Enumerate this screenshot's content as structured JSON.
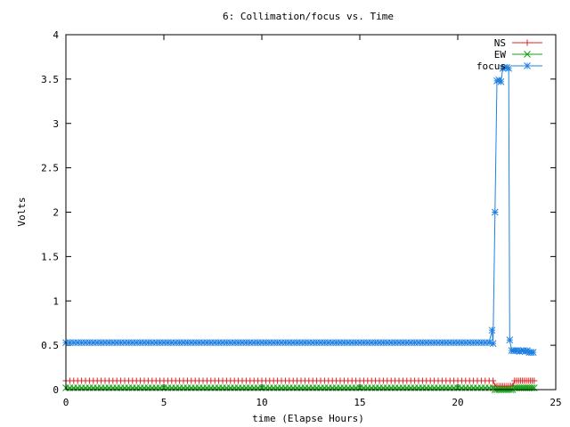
{
  "chart_data": {
    "type": "line",
    "title": "6: Collimation/focus vs. Time",
    "xlabel": "time (Elapse Hours)",
    "ylabel": "Volts",
    "xlim": [
      0,
      25
    ],
    "ylim": [
      0,
      4
    ],
    "xticks": [
      0,
      5,
      10,
      15,
      20,
      25
    ],
    "yticks": [
      0,
      0.5,
      1,
      1.5,
      2,
      2.5,
      3,
      3.5,
      4
    ],
    "xtick_labels": [
      "0",
      "5",
      "10",
      "15",
      "20",
      "25"
    ],
    "ytick_labels": [
      "0",
      "0.5",
      "1",
      "1.5",
      "2",
      "2.5",
      "3",
      "3.5",
      "4"
    ],
    "grid": false,
    "legend_position": "top-right",
    "series": [
      {
        "name": "NS",
        "color": "#e02020",
        "marker": "plus",
        "segments": [
          {
            "x_start": 0,
            "x_end": 21.8,
            "step": 0.2,
            "y": 0.1
          },
          {
            "x_start": 21.9,
            "x_end": 22.8,
            "step": 0.1,
            "y": 0.04
          },
          {
            "x_start": 22.9,
            "x_end": 23.9,
            "step": 0.1,
            "y": 0.1
          }
        ]
      },
      {
        "name": "EW",
        "color": "#10a010",
        "marker": "x",
        "segments": [
          {
            "x_start": 0,
            "x_end": 21.8,
            "step": 0.2,
            "y": 0.02
          },
          {
            "x_start": 21.9,
            "x_end": 22.8,
            "step": 0.1,
            "y": 0.0
          },
          {
            "x_start": 22.9,
            "x_end": 23.9,
            "step": 0.1,
            "y": 0.02
          }
        ]
      },
      {
        "name": "focus",
        "color": "#2080e0",
        "marker": "star",
        "segments": [
          {
            "x_start": 0,
            "x_end": 21.7,
            "step": 0.2,
            "y": 0.53
          }
        ],
        "points": [
          [
            21.75,
            0.67
          ],
          [
            21.8,
            0.52
          ],
          [
            21.9,
            2.0
          ],
          [
            22.0,
            3.48
          ],
          [
            22.1,
            3.49
          ],
          [
            22.2,
            3.47
          ],
          [
            22.3,
            3.62
          ],
          [
            22.4,
            3.63
          ],
          [
            22.5,
            3.63
          ],
          [
            22.6,
            3.62
          ],
          [
            22.65,
            0.56
          ],
          [
            22.75,
            0.44
          ],
          [
            22.85,
            0.44
          ],
          [
            22.95,
            0.44
          ],
          [
            23.05,
            0.44
          ],
          [
            23.15,
            0.43
          ],
          [
            23.25,
            0.44
          ],
          [
            23.35,
            0.44
          ],
          [
            23.45,
            0.43
          ],
          [
            23.55,
            0.44
          ],
          [
            23.65,
            0.42
          ],
          [
            23.75,
            0.42
          ],
          [
            23.85,
            0.42
          ]
        ]
      }
    ]
  }
}
